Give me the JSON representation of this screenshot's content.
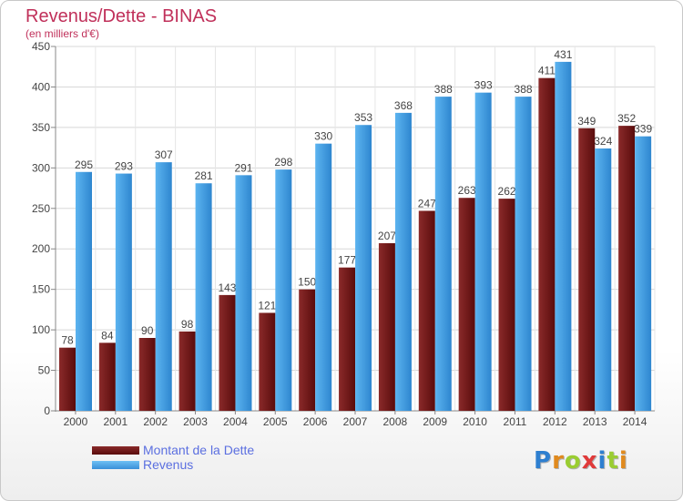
{
  "chart_data": {
    "type": "bar",
    "title": "Revenus/Dette - BINAS",
    "subtitle": "(en milliers d'€)",
    "categories": [
      "2000",
      "2001",
      "2002",
      "2003",
      "2004",
      "2005",
      "2006",
      "2007",
      "2008",
      "2009",
      "2010",
      "2011",
      "2012",
      "2013",
      "2014"
    ],
    "series": [
      {
        "name": "Montant de la Dette",
        "color": "#7a1a1a",
        "values": [
          78,
          84,
          90,
          98,
          143,
          121,
          150,
          177,
          207,
          247,
          263,
          262,
          411,
          349,
          352
        ]
      },
      {
        "name": "Revenus",
        "color": "#4ea8e8",
        "values": [
          295,
          293,
          307,
          281,
          291,
          298,
          330,
          353,
          368,
          388,
          393,
          388,
          431,
          324,
          339
        ]
      }
    ],
    "ylim": [
      0,
      450
    ],
    "yticks": [
      0,
      50,
      100,
      150,
      200,
      250,
      300,
      350,
      400,
      450
    ],
    "grid": true,
    "legend": "bottom-left"
  },
  "logo": {
    "text": "Proxiti",
    "letter_colors": [
      "#2e7fd0",
      "#e08a1e",
      "#9acd32",
      "#e03a3a",
      "#2e7fd0",
      "#9acd32",
      "#e08a1e"
    ]
  }
}
